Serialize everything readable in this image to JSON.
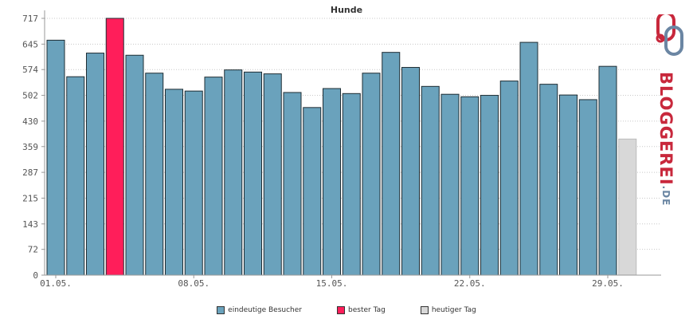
{
  "chart_data": {
    "type": "bar",
    "title": "Hunde",
    "categories": [
      "01.05.",
      "02.05.",
      "03.05.",
      "04.05.",
      "05.05.",
      "06.05.",
      "07.05.",
      "08.05.",
      "09.05.",
      "10.05.",
      "11.05.",
      "12.05.",
      "13.05.",
      "14.05.",
      "15.05.",
      "16.05.",
      "17.05.",
      "18.05.",
      "19.05.",
      "20.05.",
      "21.05.",
      "22.05.",
      "23.05.",
      "24.05.",
      "25.05.",
      "26.05.",
      "27.05.",
      "28.05.",
      "29.05."
    ],
    "values": [
      656,
      554,
      620,
      717,
      614,
      564,
      519,
      514,
      553,
      573,
      567,
      562,
      510,
      468,
      521,
      507,
      564,
      622,
      580,
      527,
      505,
      498,
      502,
      542,
      650,
      533,
      503,
      490,
      583
    ],
    "today_value": 380,
    "best_index": 3,
    "yticks": [
      "0",
      "72",
      "143",
      "215",
      "287",
      "359",
      "430",
      "502",
      "574",
      "645",
      "717"
    ],
    "xticks": [
      "01.05.",
      "08.05.",
      "15.05.",
      "22.05.",
      "29.05."
    ],
    "ylim": [
      0,
      717
    ],
    "grid": true,
    "legend_position": "bottom"
  },
  "legend": [
    {
      "label": "eindeutige Besucher",
      "color": "#6aa2bc"
    },
    {
      "label": "bester Tag",
      "color": "#ff1e5a"
    },
    {
      "label": "heutiger Tag",
      "color": "#d8d8d8"
    }
  ],
  "colors": {
    "bar": "#6aa2bc",
    "best": "#ff1e5a",
    "today": "#d8d8d8",
    "grid": "#c8c8c8"
  },
  "logo": {
    "brand": "BLOGGEREI",
    "suffix": ".DE"
  }
}
